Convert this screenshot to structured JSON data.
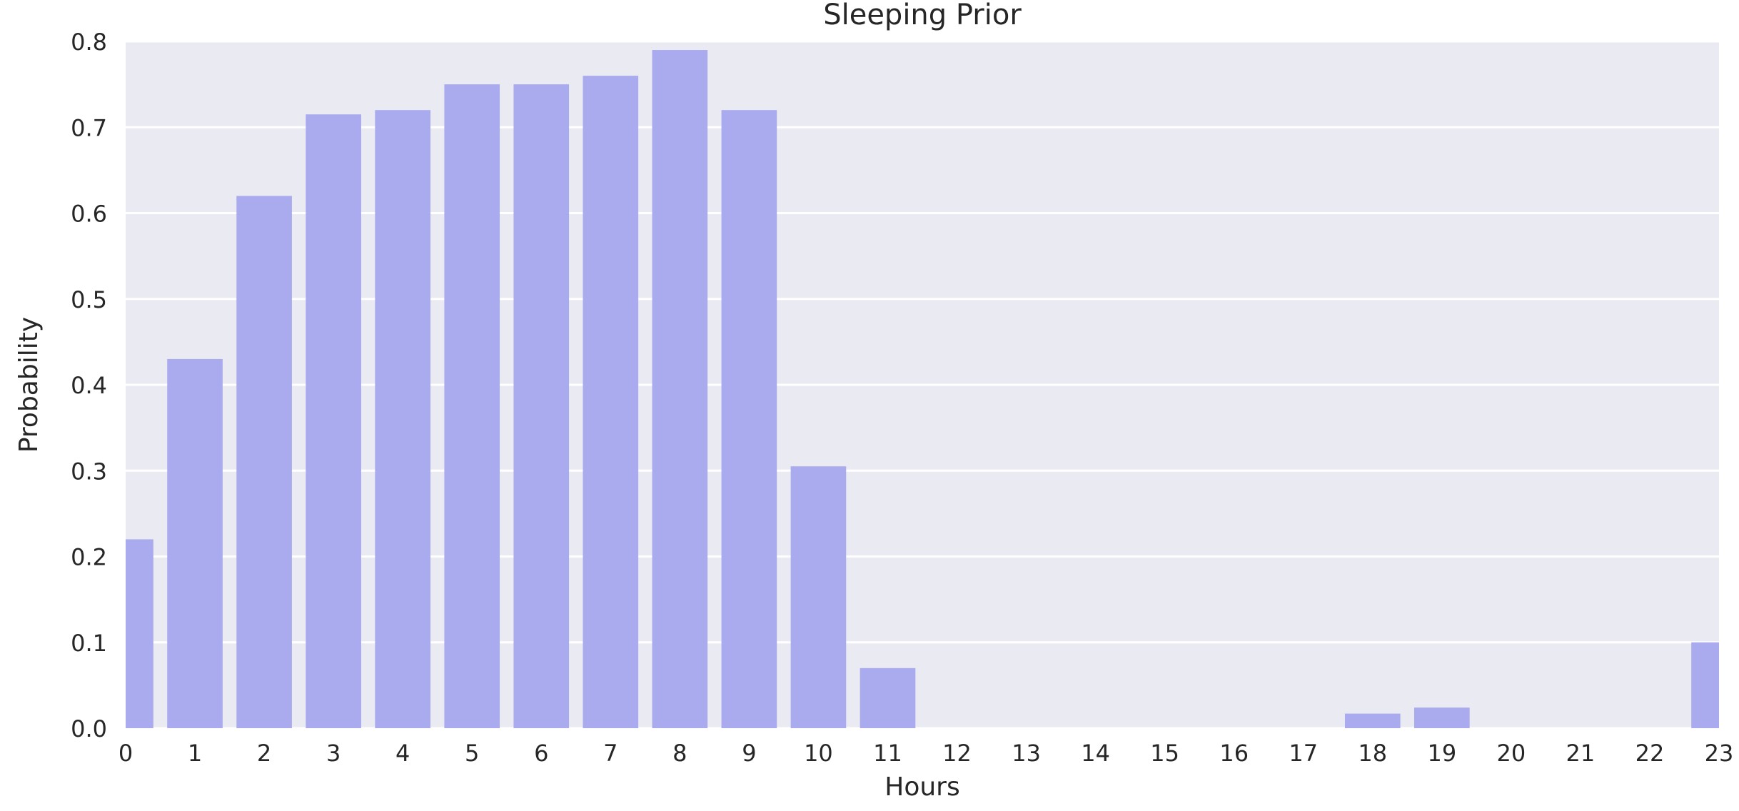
{
  "chart_data": {
    "type": "bar",
    "title": "Sleeping Prior",
    "xlabel": "Hours",
    "ylabel": "Probability",
    "categories": [
      "0",
      "1",
      "2",
      "3",
      "4",
      "5",
      "6",
      "7",
      "8",
      "9",
      "10",
      "11",
      "12",
      "13",
      "14",
      "15",
      "16",
      "17",
      "18",
      "19",
      "20",
      "21",
      "22",
      "23"
    ],
    "values": [
      0.22,
      0.43,
      0.62,
      0.715,
      0.72,
      0.75,
      0.75,
      0.76,
      0.79,
      0.72,
      0.305,
      0.07,
      0.0,
      0.0,
      0.0,
      0.0,
      0.0,
      0.0,
      0.017,
      0.024,
      0.0,
      0.0,
      0.0,
      0.1
    ],
    "ylim": [
      0.0,
      0.8
    ],
    "xlim": [
      0,
      23
    ],
    "yticks": [
      "0.0",
      "0.1",
      "0.2",
      "0.3",
      "0.4",
      "0.5",
      "0.6",
      "0.7",
      "0.8"
    ],
    "grid": true,
    "colors": {
      "bar": "#aaaaee",
      "background": "#eaeaf2",
      "grid": "#ffffff"
    }
  }
}
